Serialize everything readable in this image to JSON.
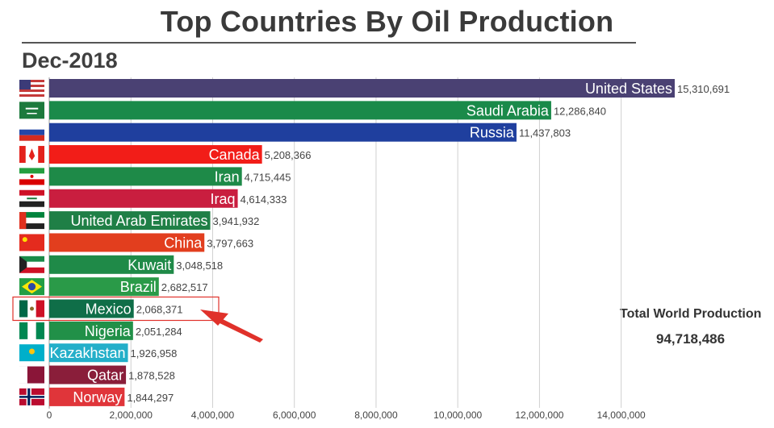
{
  "title": "Top Countries By Oil Production",
  "date": "Dec-2018",
  "total": {
    "label": "Total World Production",
    "value": "94,718,486"
  },
  "colors": {
    "highlight_box": "#e0312a",
    "arrow": "#e0312a",
    "grid": "#d0d0d0",
    "axis": "#9a9a9a"
  },
  "chart_data": {
    "type": "bar",
    "orientation": "horizontal",
    "title": "Top Countries By Oil Production",
    "subtitle": "Dec-2018",
    "categories": [
      "United States",
      "Saudi Arabia",
      "Russia",
      "Canada",
      "Iran",
      "Iraq",
      "United Arab Emirates",
      "China",
      "Kuwait",
      "Brazil",
      "Mexico",
      "Nigeria",
      "Kazakhstan",
      "Qatar",
      "Norway"
    ],
    "values": [
      15310691,
      12286840,
      11437803,
      5208366,
      4715445,
      4614333,
      3941932,
      3797663,
      3048518,
      2682517,
      2068371,
      2051284,
      1926958,
      1878528,
      1844297
    ],
    "value_labels": [
      "15,310,691",
      "12,286,840",
      "11,437,803",
      "5,208,366",
      "4,715,445",
      "4,614,333",
      "3,941,932",
      "3,797,663",
      "3,048,518",
      "2,682,517",
      "2,068,371",
      "2,051,284",
      "1,926,958",
      "1,878,528",
      "1,844,297"
    ],
    "bar_colors": [
      "#4a4173",
      "#1a8a4a",
      "#1f3f9e",
      "#f21d18",
      "#1e8a48",
      "#c91e3f",
      "#1f7f46",
      "#e23e1e",
      "#1f8a48",
      "#2a9a48",
      "#0f6e48",
      "#219048",
      "#23afc9",
      "#8a1e3a",
      "#e0353a"
    ],
    "flags": [
      "flag-us-icon",
      "flag-saudi-arabia-icon",
      "flag-russia-icon",
      "flag-canada-icon",
      "flag-iran-icon",
      "flag-iraq-icon",
      "flag-uae-icon",
      "flag-china-icon",
      "flag-kuwait-icon",
      "flag-brazil-icon",
      "flag-mexico-icon",
      "flag-nigeria-icon",
      "flag-kazakhstan-icon",
      "flag-qatar-icon",
      "flag-norway-icon"
    ],
    "xlim": [
      0,
      15310691
    ],
    "xticks": [
      0,
      2000000,
      4000000,
      6000000,
      8000000,
      10000000,
      12000000,
      14000000
    ],
    "xtick_labels": [
      "0",
      "2,000,000",
      "4,000,000",
      "6,000,000",
      "8,000,000",
      "10,000,000",
      "12,000,000",
      "14,000,000"
    ],
    "grid": true,
    "highlighted": "Mexico",
    "xlabel": "",
    "ylabel": ""
  }
}
